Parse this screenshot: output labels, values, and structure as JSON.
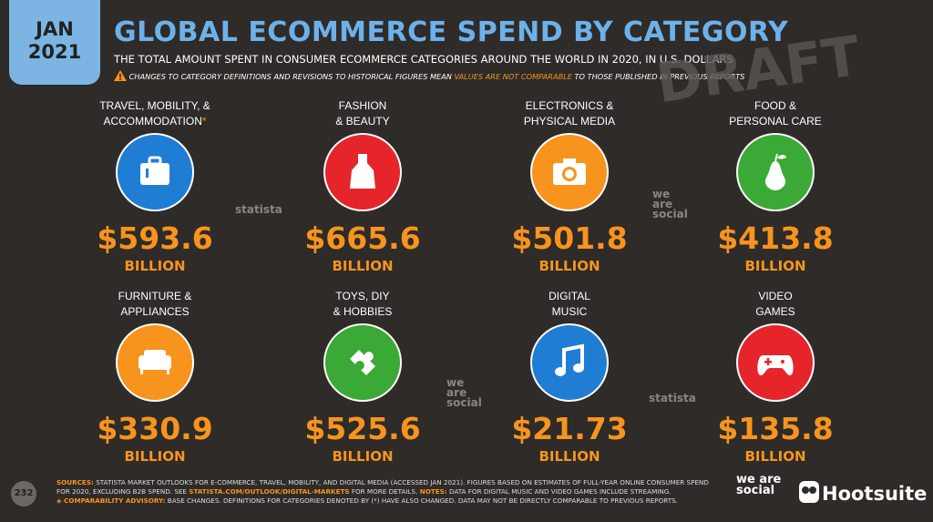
{
  "header": {
    "date_top": "JAN",
    "date_bottom": "2021",
    "title": "GLOBAL ECOMMERCE SPEND BY CATEGORY",
    "subtitle": "THE TOTAL AMOUNT SPENT IN CONSUMER ECOMMERCE CATEGORIES AROUND THE WORLD IN 2020, IN U.S. DOLLARS",
    "warning": [
      "CHANGES TO CATEGORY DEFINITIONS AND REVISIONS TO HISTORICAL FIGURES MEAN ",
      "VALUES ARE NOT COMPARABLE",
      " TO THOSE PUBLISHED IN PREVIOUS REPORTS"
    ],
    "draft": "DRAFT"
  },
  "categories": [
    {
      "label": [
        "TRAVEL, MOBILITY, &",
        "ACCOMMODATION"
      ],
      "mark": "*",
      "value": "$593.6",
      "unit": "BILLION",
      "color": "#1f7dd4"
    },
    {
      "label": [
        "FASHION",
        "& BEAUTY"
      ],
      "value": "$665.6",
      "unit": "BILLION",
      "color": "#e6252b"
    },
    {
      "label": [
        "ELECTRONICS &",
        "PHYSICAL MEDIA"
      ],
      "value": "$501.8",
      "unit": "BILLION",
      "color": "#f7941d"
    },
    {
      "label": [
        "FOOD &",
        "PERSONAL CARE"
      ],
      "value": "$413.8",
      "unit": "BILLION",
      "color": "#3aa935"
    },
    {
      "label": [
        "FURNITURE &",
        "APPLIANCES"
      ],
      "value": "$330.9",
      "unit": "BILLION",
      "color": "#f7941d"
    },
    {
      "label": [
        "TOYS, DIY",
        "& HOBBIES"
      ],
      "value": "$525.6",
      "unit": "BILLION",
      "color": "#3aa935"
    },
    {
      "label": [
        "DIGITAL",
        "MUSIC"
      ],
      "value": "$21.73",
      "unit": "BILLION",
      "color": "#1f7dd4"
    },
    {
      "label": [
        "VIDEO",
        "GAMES"
      ],
      "value": "$135.8",
      "unit": "BILLION",
      "color": "#e6252b"
    }
  ],
  "watermarks": [
    "statista",
    "we are social",
    "we are social",
    "statista"
  ],
  "footer": {
    "page": "232",
    "sources": [
      "SOURCES:",
      " STATISTA MARKET OUTLOOKS FOR E-COMMERCE, TRAVEL, MOBILITY, AND DIGITAL MEDIA (ACCESSED JAN 2021). FIGURES BASED ON ESTIMATES OF FULL-YEAR ONLINE CONSUMER SPEND FOR 2020, EXCLUDING B2B SPEND. SEE ",
      "STATISTA.COM/OUTLOOK/DIGITAL-MARKETS",
      " FOR MORE DETAILS. ",
      "NOTES:",
      " DATA FOR DIGITAL MUSIC AND VIDEO GAMES INCLUDE STREAMING."
    ],
    "advisory": [
      "◈ COMPARABILITY ADVISORY:",
      " BASE CHANGES. DEFINITIONS FOR CATEGORIES DENOTED BY (*) HAVE ALSO CHANGED. DATA MAY NOT BE DIRECTLY COMPARABLE TO PREVIOUS REPORTS."
    ],
    "logo_was": "we are social",
    "logo_hs": "Hootsuite"
  }
}
